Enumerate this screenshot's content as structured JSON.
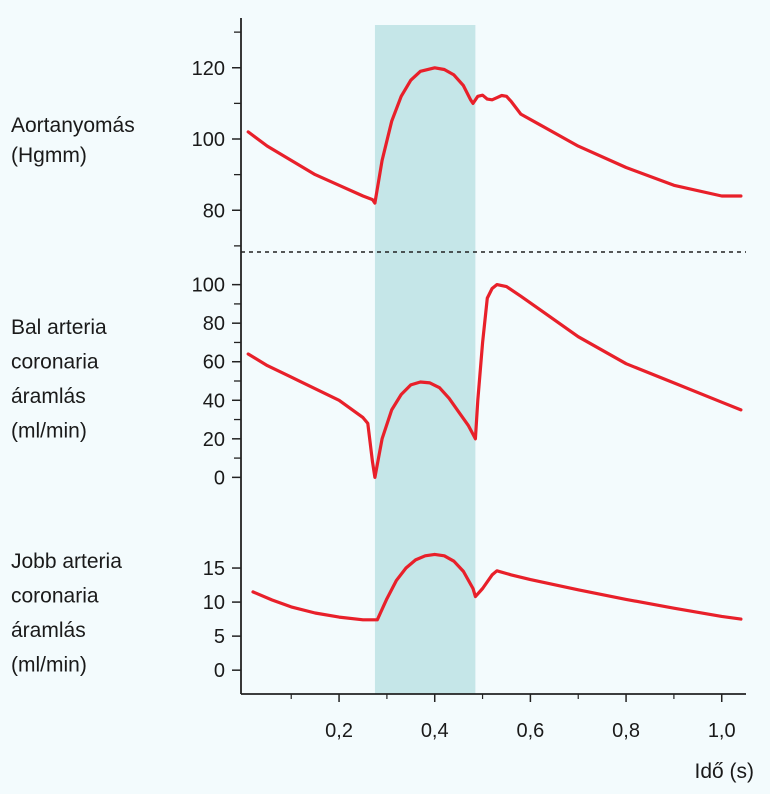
{
  "colors": {
    "background": "#f3fbfd",
    "band": "#c5e6e8",
    "curve": "#e8202a",
    "axis": "#222222"
  },
  "chart_data": {
    "type": "line",
    "xlabel": "Idő (s)",
    "x_ticks": [
      "0,2",
      "0,4",
      "0,6",
      "0,8",
      "1,0"
    ],
    "x_tick_values": [
      0.2,
      0.4,
      0.6,
      0.8,
      1.0
    ],
    "xlim": [
      -0.005,
      1.08
    ],
    "shaded_band": {
      "x_start": 0.275,
      "x_end": 0.485
    },
    "panels": [
      {
        "id": "aorta",
        "label_lines": [
          "Aortanyomás",
          "(Hgmm)"
        ],
        "ylim": [
          68,
          132
        ],
        "y_ticks": [
          80,
          100,
          120
        ],
        "y_tick_labels": [
          "80",
          "100",
          "120"
        ],
        "minor_ticks": [
          70,
          90,
          110,
          130
        ],
        "series": [
          {
            "x": [
              0.01,
              0.05,
              0.1,
              0.15,
              0.2,
              0.25,
              0.27,
              0.275,
              0.29,
              0.31,
              0.33,
              0.35,
              0.37,
              0.4,
              0.42,
              0.44,
              0.46,
              0.475,
              0.48,
              0.49,
              0.5,
              0.51,
              0.52,
              0.53,
              0.54,
              0.55,
              0.56,
              0.58,
              0.62,
              0.7,
              0.8,
              0.9,
              1.0,
              1.04
            ],
            "y": [
              102,
              98,
              94,
              90,
              87,
              84,
              83,
              82,
              94,
              105,
              112,
              116.5,
              119,
              120,
              119.5,
              118,
              115,
              111,
              110,
              112,
              112.3,
              111.2,
              111,
              111.6,
              112.2,
              112,
              110.5,
              107,
              104,
              98,
              92,
              87,
              84,
              84
            ]
          }
        ]
      },
      {
        "id": "left",
        "label_lines": [
          "Bal arteria",
          "coronaria",
          "áramlás",
          "(ml/min)"
        ],
        "ylim": [
          -5,
          105
        ],
        "y_ticks": [
          0,
          20,
          40,
          60,
          80,
          100
        ],
        "y_tick_labels": [
          "0",
          "20",
          "40",
          "60",
          "80",
          "100"
        ],
        "minor_ticks": [
          10,
          30,
          50,
          70,
          90
        ],
        "series": [
          {
            "x": [
              0.01,
              0.05,
              0.1,
              0.15,
              0.2,
              0.25,
              0.26,
              0.27,
              0.275,
              0.29,
              0.31,
              0.33,
              0.35,
              0.37,
              0.39,
              0.41,
              0.43,
              0.45,
              0.47,
              0.485,
              0.49,
              0.5,
              0.51,
              0.52,
              0.53,
              0.55,
              0.58,
              0.62,
              0.7,
              0.8,
              0.9,
              1.0,
              1.04
            ],
            "y": [
              64,
              58,
              52,
              46,
              40,
              31,
              28,
              8,
              0,
              20,
              35,
              43,
              48,
              49.5,
              49,
              46.5,
              41,
              34,
              27,
              20,
              40,
              70,
              93,
              98,
              100,
              99,
              94,
              87,
              73,
              59,
              49,
              39,
              35
            ]
          }
        ]
      },
      {
        "id": "right",
        "label_lines": [
          "Jobb arteria",
          "coronaria",
          "áramlás",
          "(ml/min)"
        ],
        "ylim": [
          -3.5,
          20
        ],
        "y_ticks": [
          0,
          5,
          10,
          15
        ],
        "y_tick_labels": [
          "0",
          "5",
          "10",
          "15"
        ],
        "minor_ticks": [],
        "series": [
          {
            "x": [
              0.02,
              0.06,
              0.1,
              0.15,
              0.2,
              0.25,
              0.28,
              0.3,
              0.32,
              0.34,
              0.36,
              0.38,
              0.4,
              0.42,
              0.44,
              0.46,
              0.48,
              0.485,
              0.5,
              0.52,
              0.53,
              0.56,
              0.6,
              0.7,
              0.8,
              0.9,
              1.0,
              1.04
            ],
            "y": [
              11.5,
              10.3,
              9.3,
              8.4,
              7.8,
              7.4,
              7.4,
              10.5,
              13.2,
              15.0,
              16.2,
              16.8,
              17.0,
              16.8,
              16.0,
              14.5,
              12.0,
              10.8,
              12.0,
              14.0,
              14.6,
              14.0,
              13.3,
              11.8,
              10.4,
              9.1,
              7.9,
              7.5
            ]
          }
        ]
      }
    ]
  }
}
